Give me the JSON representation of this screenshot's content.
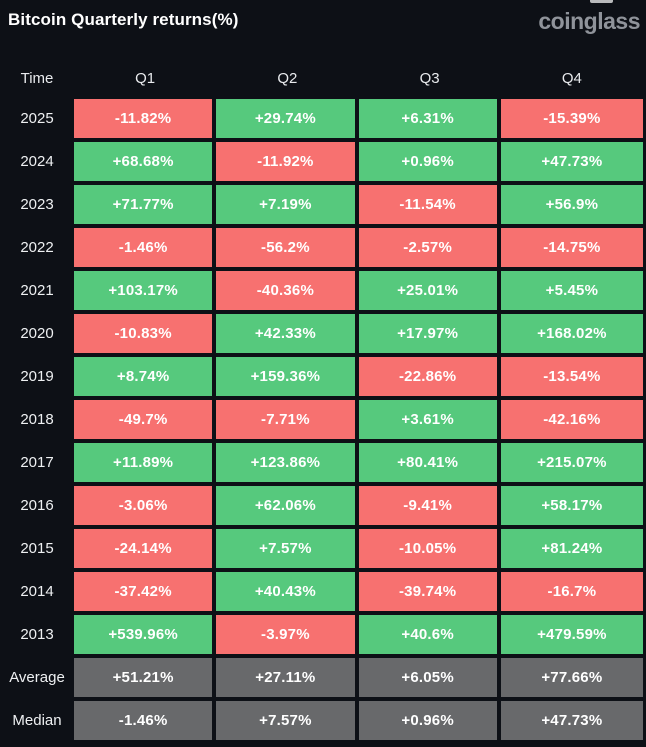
{
  "page": {
    "title": "Bitcoin Quarterly returns(%)",
    "logo": "coinglass"
  },
  "colors": {
    "positive": "#56c97d",
    "negative": "#f77170",
    "neutral": "#68696b",
    "background": "#0d1016",
    "header_text": "#e9ebee",
    "cell_text": "#ffffff",
    "logo_text": "#8f939a"
  },
  "columns": [
    "Time",
    "Q1",
    "Q2",
    "Q3",
    "Q4"
  ],
  "table": {
    "rows": [
      {
        "label": "2025",
        "type": "year",
        "values": [
          "-11.82%",
          "+29.74%",
          "+6.31%",
          "-15.39%"
        ]
      },
      {
        "label": "2024",
        "type": "year",
        "values": [
          "+68.68%",
          "-11.92%",
          "+0.96%",
          "+47.73%"
        ]
      },
      {
        "label": "2023",
        "type": "year",
        "values": [
          "+71.77%",
          "+7.19%",
          "-11.54%",
          "+56.9%"
        ]
      },
      {
        "label": "2022",
        "type": "year",
        "values": [
          "-1.46%",
          "-56.2%",
          "-2.57%",
          "-14.75%"
        ]
      },
      {
        "label": "2021",
        "type": "year",
        "values": [
          "+103.17%",
          "-40.36%",
          "+25.01%",
          "+5.45%"
        ]
      },
      {
        "label": "2020",
        "type": "year",
        "values": [
          "-10.83%",
          "+42.33%",
          "+17.97%",
          "+168.02%"
        ]
      },
      {
        "label": "2019",
        "type": "year",
        "values": [
          "+8.74%",
          "+159.36%",
          "-22.86%",
          "-13.54%"
        ]
      },
      {
        "label": "2018",
        "type": "year",
        "values": [
          "-49.7%",
          "-7.71%",
          "+3.61%",
          "-42.16%"
        ]
      },
      {
        "label": "2017",
        "type": "year",
        "values": [
          "+11.89%",
          "+123.86%",
          "+80.41%",
          "+215.07%"
        ]
      },
      {
        "label": "2016",
        "type": "year",
        "values": [
          "-3.06%",
          "+62.06%",
          "-9.41%",
          "+58.17%"
        ]
      },
      {
        "label": "2015",
        "type": "year",
        "values": [
          "-24.14%",
          "+7.57%",
          "-10.05%",
          "+81.24%"
        ]
      },
      {
        "label": "2014",
        "type": "year",
        "values": [
          "-37.42%",
          "+40.43%",
          "-39.74%",
          "-16.7%"
        ]
      },
      {
        "label": "2013",
        "type": "year",
        "values": [
          "+539.96%",
          "-3.97%",
          "+40.6%",
          "+479.59%"
        ]
      },
      {
        "label": "Average",
        "type": "summary",
        "values": [
          "+51.21%",
          "+27.11%",
          "+6.05%",
          "+77.66%"
        ]
      },
      {
        "label": "Median",
        "type": "summary",
        "values": [
          "-1.46%",
          "+7.57%",
          "+0.96%",
          "+47.73%"
        ]
      }
    ]
  },
  "chart_data": {
    "type": "table",
    "title": "Bitcoin Quarterly returns(%)",
    "columns": [
      "Q1",
      "Q2",
      "Q3",
      "Q4"
    ],
    "unit": "%",
    "rows": [
      {
        "label": "2025",
        "values": [
          -11.82,
          29.74,
          6.31,
          -15.39
        ]
      },
      {
        "label": "2024",
        "values": [
          68.68,
          -11.92,
          0.96,
          47.73
        ]
      },
      {
        "label": "2023",
        "values": [
          71.77,
          7.19,
          -11.54,
          56.9
        ]
      },
      {
        "label": "2022",
        "values": [
          -1.46,
          -56.2,
          -2.57,
          -14.75
        ]
      },
      {
        "label": "2021",
        "values": [
          103.17,
          -40.36,
          25.01,
          5.45
        ]
      },
      {
        "label": "2020",
        "values": [
          -10.83,
          42.33,
          17.97,
          168.02
        ]
      },
      {
        "label": "2019",
        "values": [
          8.74,
          159.36,
          -22.86,
          -13.54
        ]
      },
      {
        "label": "2018",
        "values": [
          -49.7,
          -7.71,
          3.61,
          -42.16
        ]
      },
      {
        "label": "2017",
        "values": [
          11.89,
          123.86,
          80.41,
          215.07
        ]
      },
      {
        "label": "2016",
        "values": [
          -3.06,
          62.06,
          -9.41,
          58.17
        ]
      },
      {
        "label": "2015",
        "values": [
          -24.14,
          7.57,
          -10.05,
          81.24
        ]
      },
      {
        "label": "2014",
        "values": [
          -37.42,
          40.43,
          -39.74,
          -16.7
        ]
      },
      {
        "label": "2013",
        "values": [
          539.96,
          -3.97,
          40.6,
          479.59
        ]
      },
      {
        "label": "Average",
        "values": [
          51.21,
          27.11,
          6.05,
          77.66
        ]
      },
      {
        "label": "Median",
        "values": [
          -1.46,
          7.57,
          0.96,
          47.73
        ]
      }
    ],
    "color_coding": "green = positive return, red = negative return, gray = summary rows"
  }
}
